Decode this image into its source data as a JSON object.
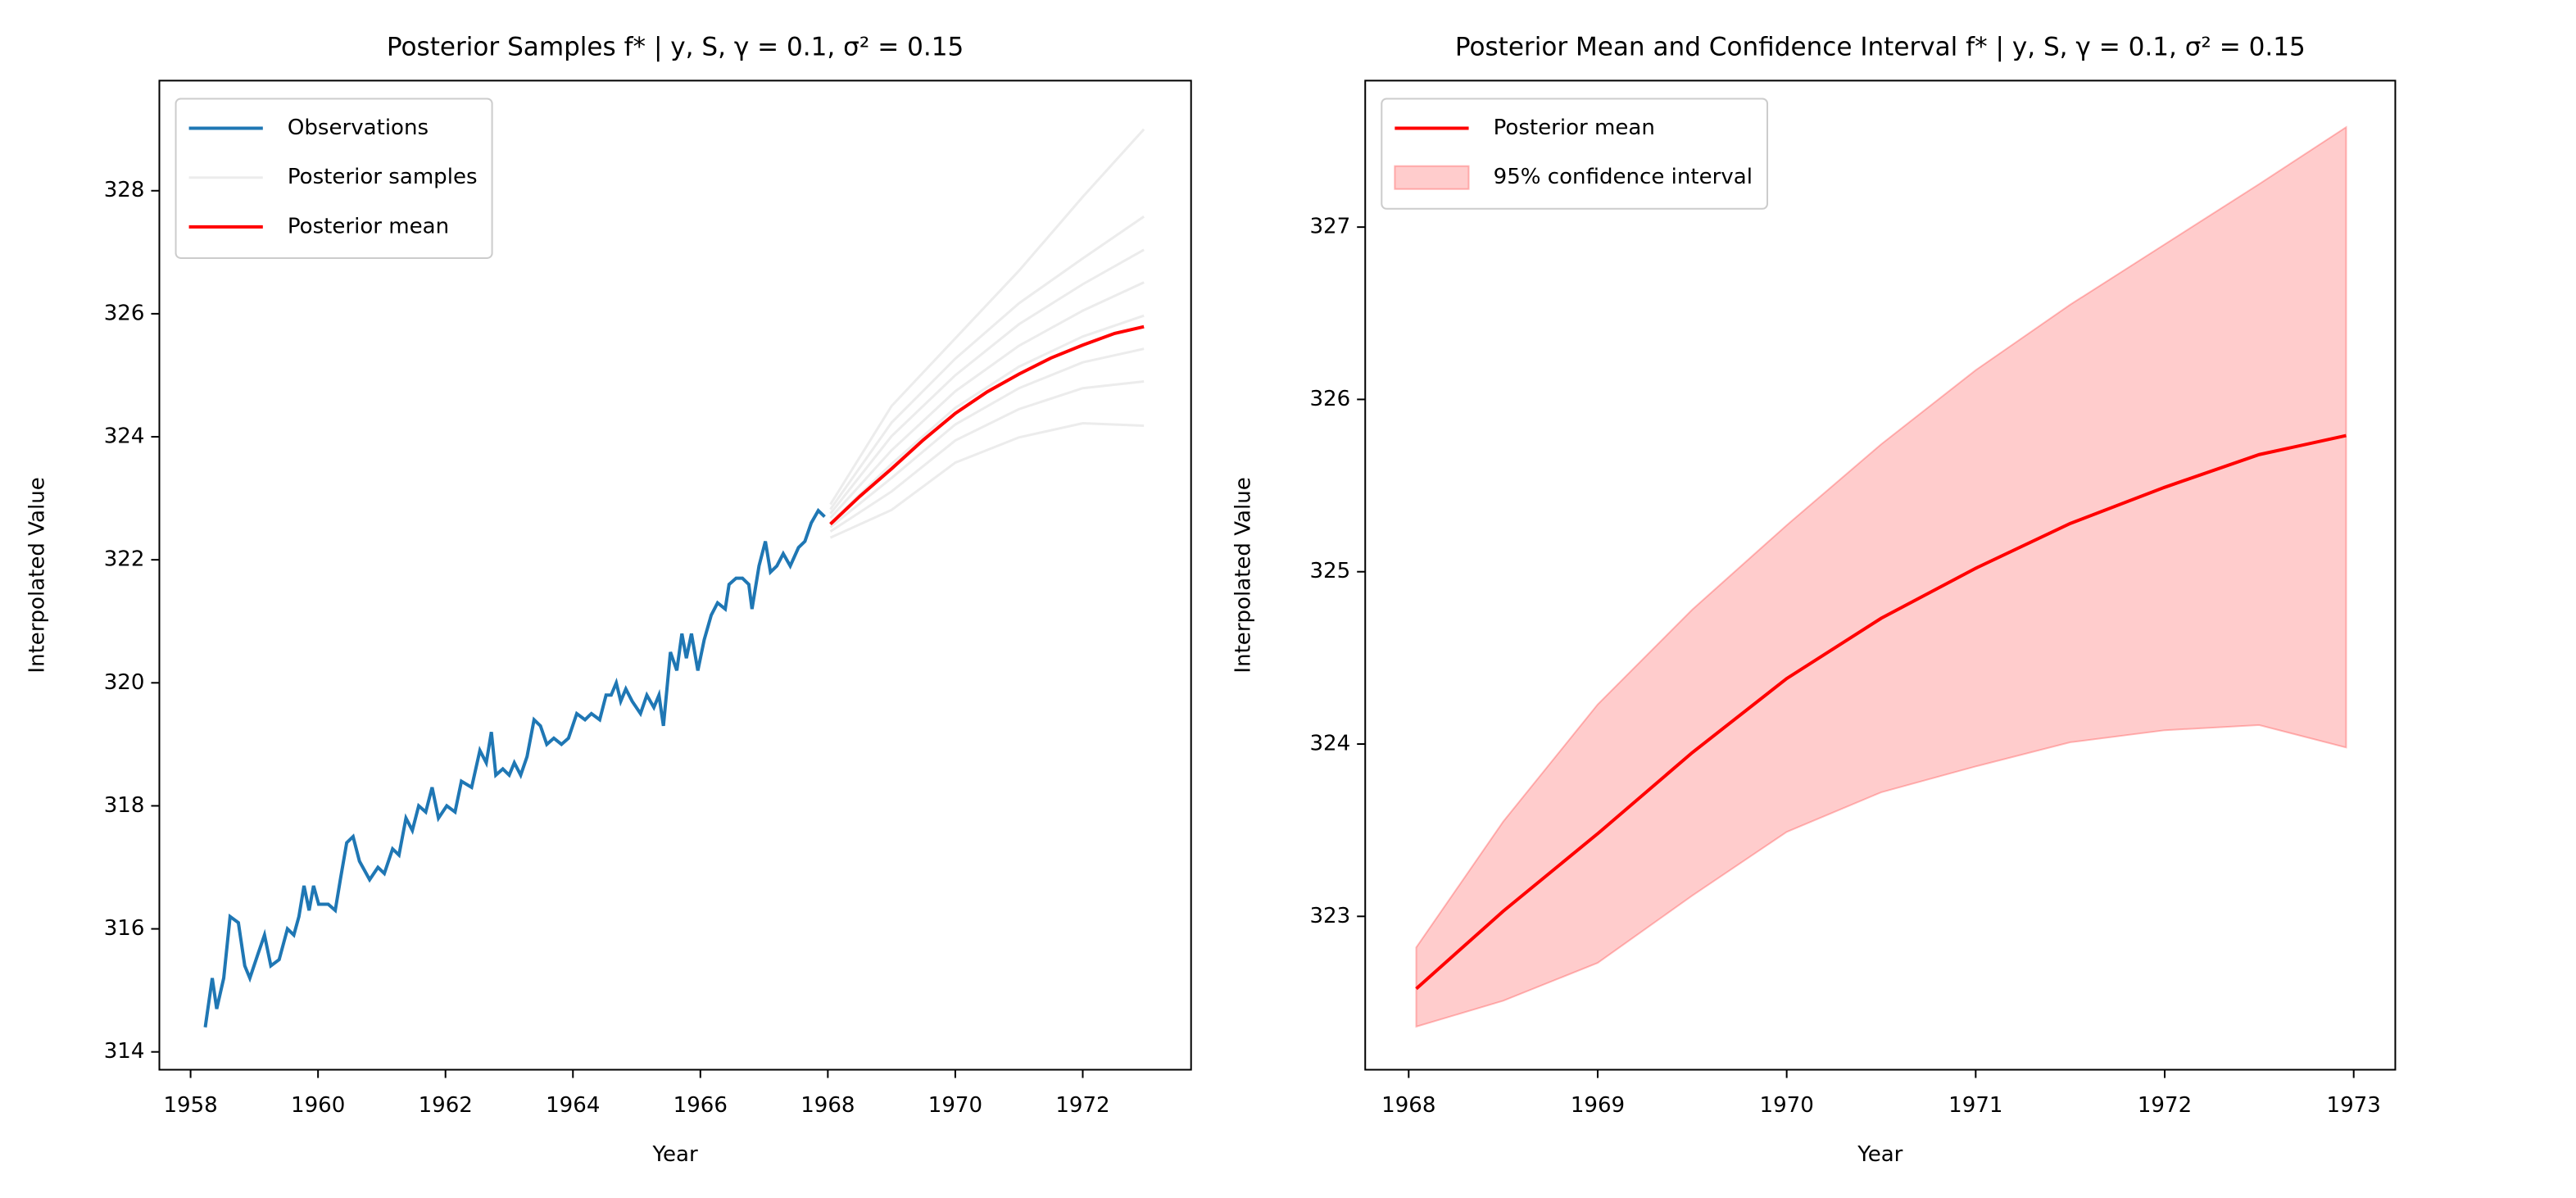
{
  "chart_data": [
    {
      "type": "line",
      "title": "Posterior Samples f* | y, S, γ = 0.1, σ² = 0.15",
      "xlabel": "Year",
      "ylabel": "Interpolated Value",
      "xlim": [
        1957.51,
        1973.7
      ],
      "xticks": [
        1958,
        1960,
        1962,
        1964,
        1966,
        1968,
        1970,
        1972
      ],
      "ylim": [
        313.71,
        329.79
      ],
      "yticks": [
        314,
        316,
        318,
        320,
        322,
        324,
        326,
        328
      ],
      "legend": "upper left",
      "series": [
        {
          "name": "Observations",
          "color": "#1f77b4",
          "x": [
            1958.23,
            1958.34,
            1958.41,
            1958.52,
            1958.62,
            1958.75,
            1958.85,
            1958.93,
            1959.06,
            1959.16,
            1959.26,
            1959.39,
            1959.52,
            1959.62,
            1959.7,
            1959.78,
            1959.86,
            1959.93,
            1960.01,
            1960.16,
            1960.27,
            1960.35,
            1960.45,
            1960.55,
            1960.65,
            1960.81,
            1960.94,
            1961.04,
            1961.17,
            1961.27,
            1961.38,
            1961.48,
            1961.58,
            1961.69,
            1961.79,
            1961.89,
            1962.02,
            1962.15,
            1962.25,
            1962.41,
            1962.54,
            1962.64,
            1962.72,
            1962.79,
            1962.9,
            1963.0,
            1963.08,
            1963.18,
            1963.28,
            1963.39,
            1963.49,
            1963.59,
            1963.7,
            1963.82,
            1963.93,
            1964.06,
            1964.19,
            1964.29,
            1964.42,
            1964.52,
            1964.6,
            1964.68,
            1964.75,
            1964.83,
            1964.93,
            1965.06,
            1965.16,
            1965.27,
            1965.35,
            1965.42,
            1965.53,
            1965.63,
            1965.71,
            1965.78,
            1965.86,
            1965.96,
            1966.06,
            1966.17,
            1966.27,
            1966.39,
            1966.45,
            1966.56,
            1966.66,
            1966.76,
            1966.81,
            1966.92,
            1967.02,
            1967.1,
            1967.2,
            1967.3,
            1967.41,
            1967.54,
            1967.64,
            1967.74,
            1967.85,
            1967.95
          ],
          "values": [
            314.4,
            315.2,
            314.7,
            315.2,
            316.2,
            316.1,
            315.4,
            315.2,
            315.6,
            315.9,
            315.4,
            315.5,
            316.0,
            315.9,
            316.2,
            316.7,
            316.3,
            316.7,
            316.4,
            316.4,
            316.3,
            316.8,
            317.4,
            317.5,
            317.1,
            316.8,
            317.0,
            316.9,
            317.3,
            317.2,
            317.8,
            317.6,
            318.0,
            317.9,
            318.3,
            317.8,
            318.0,
            317.9,
            318.4,
            318.3,
            318.9,
            318.7,
            319.2,
            318.5,
            318.6,
            318.5,
            318.7,
            318.5,
            318.8,
            319.4,
            319.3,
            319.0,
            319.1,
            319.0,
            319.1,
            319.5,
            319.4,
            319.5,
            319.4,
            319.8,
            319.8,
            320.0,
            319.7,
            319.9,
            319.7,
            319.5,
            319.8,
            319.6,
            319.8,
            319.3,
            320.5,
            320.2,
            320.8,
            320.4,
            320.8,
            320.2,
            320.7,
            321.1,
            321.3,
            321.2,
            321.6,
            321.7,
            321.7,
            321.6,
            321.2,
            321.9,
            322.3,
            321.8,
            321.9,
            322.1,
            321.9,
            322.2,
            322.3,
            322.6,
            322.8,
            322.7
          ]
        },
        {
          "name": "Posterior samples",
          "color": "#c8c8c8",
          "x": [
            1968.04,
            1969,
            1970,
            1971,
            1972,
            1972.96
          ],
          "samples": [
            [
              322.36,
              322.81,
              323.58,
              323.99,
              324.22,
              324.18
            ],
            [
              322.46,
              323.11,
              323.94,
              324.45,
              324.79,
              324.9
            ],
            [
              322.53,
              323.33,
              324.2,
              324.79,
              325.21,
              325.43
            ],
            [
              322.6,
              323.56,
              324.47,
              325.14,
              325.63,
              325.97
            ],
            [
              322.68,
              323.78,
              324.74,
              325.48,
              326.05,
              326.51
            ],
            [
              322.75,
              324.01,
              325.0,
              325.83,
              326.48,
              327.04
            ],
            [
              322.82,
              324.23,
              325.27,
              326.17,
              326.9,
              327.58
            ],
            [
              322.9,
              324.5,
              325.6,
              326.7,
              327.9,
              329.0
            ]
          ]
        },
        {
          "name": "Posterior mean",
          "color": "#ff0000",
          "x": [
            1968.04,
            1968.5,
            1969,
            1969.5,
            1970,
            1970.5,
            1971,
            1971.5,
            1972,
            1972.5,
            1972.96
          ],
          "values": [
            322.58,
            323.03,
            323.48,
            323.95,
            324.38,
            324.73,
            325.02,
            325.28,
            325.49,
            325.68,
            325.79
          ]
        }
      ]
    },
    {
      "type": "line",
      "title": "Posterior Mean and Confidence Interval f* | y, S, γ = 0.1, σ² = 0.15",
      "xlabel": "Year",
      "ylabel": "Interpolated Value",
      "xlim": [
        1967.77,
        1973.22
      ],
      "xticks": [
        1968,
        1969,
        1970,
        1971,
        1972,
        1973
      ],
      "ylim": [
        322.11,
        327.85
      ],
      "yticks": [
        323,
        324,
        325,
        326,
        327
      ],
      "legend": "upper left",
      "series": [
        {
          "name": "Posterior mean",
          "color": "#ff0000",
          "x": [
            1968.04,
            1968.5,
            1969,
            1969.5,
            1970,
            1970.5,
            1971,
            1971.5,
            1972,
            1972.5,
            1972.96
          ],
          "values": [
            322.58,
            323.03,
            323.48,
            323.95,
            324.38,
            324.73,
            325.02,
            325.28,
            325.49,
            325.68,
            325.79
          ]
        },
        {
          "name": "95% confidence interval",
          "color": "#ff0000",
          "x": [
            1968.04,
            1968.5,
            1969,
            1969.5,
            1970,
            1970.5,
            1971,
            1971.5,
            1972,
            1972.5,
            1972.96
          ],
          "lower": [
            322.36,
            322.51,
            322.73,
            323.12,
            323.49,
            323.72,
            323.87,
            324.01,
            324.08,
            324.11,
            323.98
          ],
          "upper": [
            322.82,
            323.55,
            324.23,
            324.78,
            325.27,
            325.74,
            326.17,
            326.55,
            326.9,
            327.25,
            327.58
          ]
        }
      ]
    }
  ]
}
